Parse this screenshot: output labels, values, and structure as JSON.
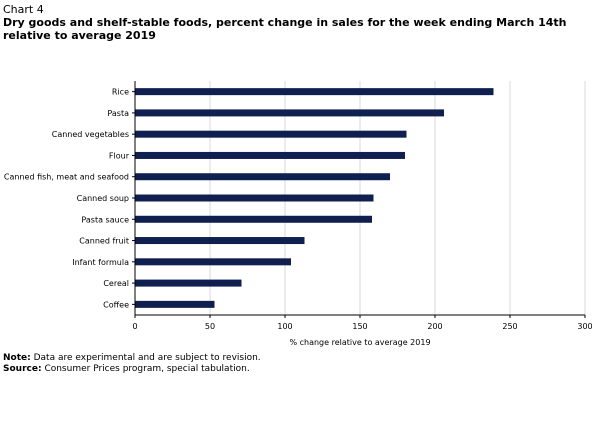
{
  "header": {
    "chart_label": "Chart 4",
    "title": "Dry goods and shelf-stable foods, percent change in sales for the week ending March 14th relative to average 2019"
  },
  "notes": {
    "note_label": "Note:",
    "note_text": "Data are experimental and are subject to revision.",
    "source_label": "Source:",
    "source_text": "Consumer Prices program, special tabulation."
  },
  "colors": {
    "bar": "#0f1f4f",
    "grid": "#d9d9d9",
    "axis": "#000000"
  },
  "chart_data": {
    "type": "bar",
    "orientation": "horizontal",
    "categories": [
      "Rice",
      "Pasta",
      "Canned vegetables",
      "Flour",
      "Canned fish, meat and seafood",
      "Canned soup",
      "Pasta sauce",
      "Canned fruit",
      "Infant formula",
      "Cereal",
      "Coffee"
    ],
    "values": [
      239,
      206,
      181,
      180,
      170,
      159,
      158,
      113,
      104,
      71,
      53
    ],
    "xlabel": "% change relative to average 2019",
    "ylabel": "",
    "xlim": [
      0,
      300
    ],
    "xticks": [
      0,
      50,
      100,
      150,
      200,
      250,
      300
    ],
    "grid": true,
    "legend": "none"
  }
}
